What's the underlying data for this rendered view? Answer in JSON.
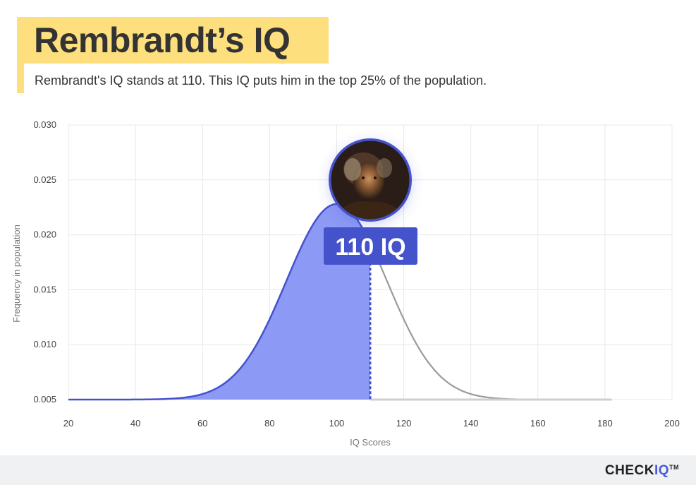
{
  "header": {
    "title": "Rembrandt’s IQ",
    "subtitle": "Rembrandt's IQ stands at 110. This IQ puts him in the top 25% of the population."
  },
  "footer": {
    "brand_main": "CHECK",
    "brand_accent": "IQ",
    "brand_mark": "TM"
  },
  "colors": {
    "fill": "#8c99f5",
    "line": "#4452cc",
    "badge": "#4452cc",
    "grey_curve": "#9a9a9a",
    "grid": "#e8e8e8"
  },
  "chart_data": {
    "type": "area",
    "xlabel": "IQ Scores",
    "ylabel": "Frequency in population",
    "xlim": [
      20,
      200
    ],
    "ylim": [
      0.005,
      0.03
    ],
    "x_ticks": [
      20,
      40,
      60,
      80,
      100,
      120,
      140,
      160,
      180,
      200
    ],
    "y_ticks": [
      "0.005",
      "0.010",
      "0.015",
      "0.020",
      "0.025",
      "0.030"
    ],
    "grid": true,
    "distribution": {
      "mean": 100,
      "sd": 15
    },
    "highlight": {
      "value": 110,
      "label": "110 IQ",
      "person": "Rembrandt"
    },
    "baseline_end": 182
  }
}
